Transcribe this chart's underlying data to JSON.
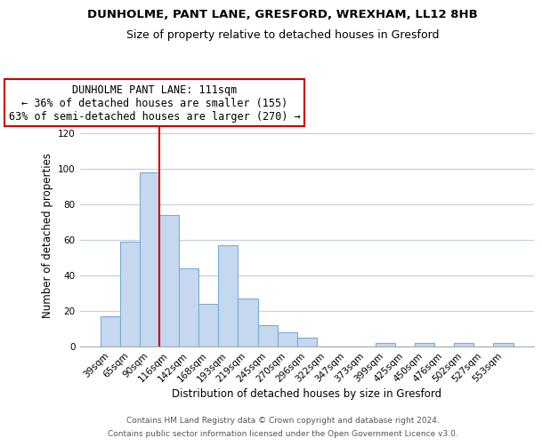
{
  "title": "DUNHOLME, PANT LANE, GRESFORD, WREXHAM, LL12 8HB",
  "subtitle": "Size of property relative to detached houses in Gresford",
  "xlabel": "Distribution of detached houses by size in Gresford",
  "ylabel": "Number of detached properties",
  "bin_labels": [
    "39sqm",
    "65sqm",
    "90sqm",
    "116sqm",
    "142sqm",
    "168sqm",
    "193sqm",
    "219sqm",
    "245sqm",
    "270sqm",
    "296sqm",
    "322sqm",
    "347sqm",
    "373sqm",
    "399sqm",
    "425sqm",
    "450sqm",
    "476sqm",
    "502sqm",
    "527sqm",
    "553sqm"
  ],
  "bar_heights": [
    17,
    59,
    98,
    74,
    44,
    24,
    57,
    27,
    12,
    8,
    5,
    0,
    0,
    0,
    2,
    0,
    2,
    0,
    2,
    0,
    2
  ],
  "bar_color": "#c5d8f0",
  "bar_edgecolor": "#7aadd4",
  "vline_x_index": 2,
  "vline_color": "#cc0000",
  "annotation_title": "DUNHOLME PANT LANE: 111sqm",
  "annotation_line1": "← 36% of detached houses are smaller (155)",
  "annotation_line2": "63% of semi-detached houses are larger (270) →",
  "annotation_box_edgecolor": "#cc0000",
  "annotation_box_facecolor": "#ffffff",
  "ylim": [
    0,
    125
  ],
  "yticks": [
    0,
    20,
    40,
    60,
    80,
    100,
    120
  ],
  "footer1": "Contains HM Land Registry data © Crown copyright and database right 2024.",
  "footer2": "Contains public sector information licensed under the Open Government Licence v3.0.",
  "bg_color": "#ffffff",
  "grid_color": "#c0cfe0",
  "title_fontsize": 9.5,
  "subtitle_fontsize": 9,
  "axis_fontsize": 8.5,
  "tick_fontsize": 7.5,
  "footer_fontsize": 6.5,
  "annot_fontsize": 8.5
}
